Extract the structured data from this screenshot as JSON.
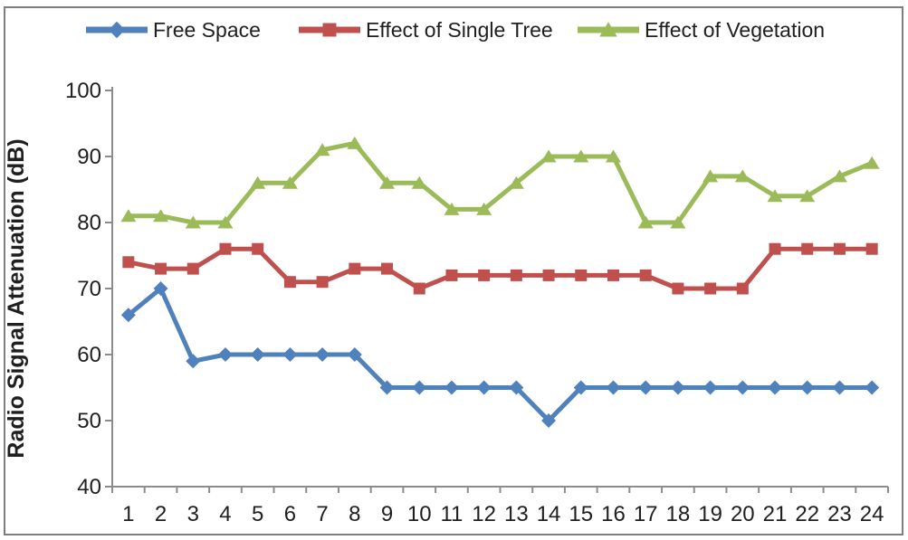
{
  "chart_data": {
    "type": "line",
    "title": "",
    "xlabel": "",
    "ylabel": "Radio Signal Attenuation (dB)",
    "ylim": [
      40,
      100
    ],
    "ytick_step": 10,
    "grid": false,
    "legend_position": "top",
    "x": [
      1,
      2,
      3,
      4,
      5,
      6,
      7,
      8,
      9,
      10,
      11,
      12,
      13,
      14,
      15,
      16,
      17,
      18,
      19,
      20,
      21,
      22,
      23,
      24
    ],
    "series": [
      {
        "name": "Free Space",
        "marker": "diamond",
        "color": "#4F81BD",
        "values": [
          66,
          70,
          59,
          60,
          60,
          60,
          60,
          60,
          55,
          55,
          55,
          55,
          55,
          50,
          55,
          55,
          55,
          55,
          55,
          55,
          55,
          55,
          55,
          55
        ]
      },
      {
        "name": "Effect of Single Tree",
        "marker": "square",
        "color": "#C0504D",
        "values": [
          74,
          73,
          73,
          76,
          76,
          71,
          71,
          73,
          73,
          70,
          72,
          72,
          72,
          72,
          72,
          72,
          72,
          70,
          70,
          70,
          76,
          76,
          76,
          76
        ]
      },
      {
        "name": "Effect of Vegetation",
        "marker": "triangle",
        "color": "#9BBB59",
        "values": [
          81,
          81,
          80,
          80,
          86,
          86,
          91,
          92,
          86,
          86,
          82,
          82,
          86,
          90,
          90,
          90,
          80,
          80,
          87,
          87,
          84,
          84,
          87,
          89
        ]
      }
    ],
    "colors": {
      "axis": "#8C8C8C",
      "text": "#1F1F1F",
      "frame": "#7F7F7F",
      "background": "#FFFFFF"
    }
  }
}
